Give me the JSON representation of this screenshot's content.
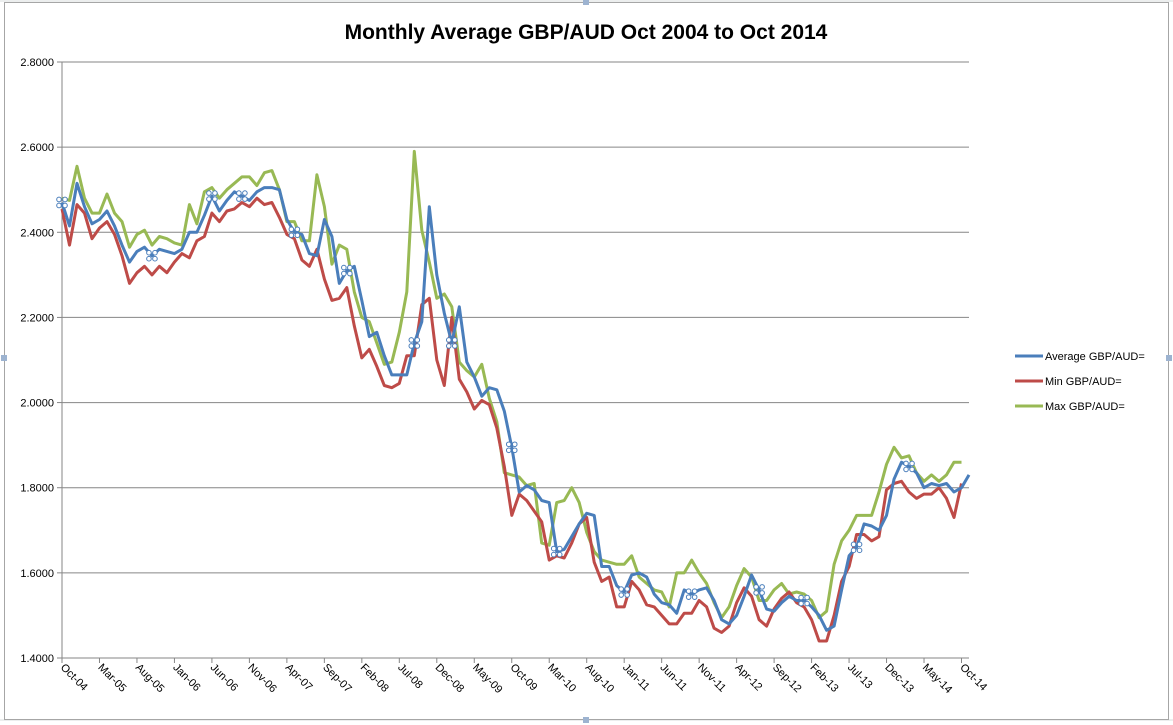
{
  "chart_data": {
    "type": "line",
    "title": "Monthly Average GBP/AUD Oct 2004 to Oct 2014",
    "xlabel": "",
    "ylabel": "",
    "ylim": [
      1.4,
      2.8
    ],
    "yticks": [
      "1.4000",
      "1.6000",
      "1.8000",
      "2.0000",
      "2.2000",
      "2.4000",
      "2.6000",
      "2.8000"
    ],
    "ytick_values": [
      1.4,
      1.6,
      1.8,
      2.0,
      2.2,
      2.4,
      2.6,
      2.8
    ],
    "xtick_labels": [
      "Oct-04",
      "Mar-05",
      "Aug-05",
      "Jan-06",
      "Jun-06",
      "Nov-06",
      "Apr-07",
      "Sep-07",
      "Feb-08",
      "Jul-08",
      "Dec-08",
      "May-09",
      "Oct-09",
      "Mar-10",
      "Aug-10",
      "Jan-11",
      "Jun-11",
      "Nov-11",
      "Apr-12",
      "Sep-12",
      "Feb-13",
      "Jul-13",
      "Dec-13",
      "May-14",
      "Oct-14"
    ],
    "xtick_every": 5,
    "grid": "horizontal",
    "legend_position": "right",
    "series": [
      {
        "name": "Average GBP/AUD=",
        "color": "#4a7ebb",
        "values": [
          2.47,
          2.415,
          2.515,
          2.46,
          2.42,
          2.43,
          2.45,
          2.415,
          2.37,
          2.33,
          2.355,
          2.365,
          2.345,
          2.36,
          2.355,
          2.35,
          2.36,
          2.4,
          2.4,
          2.44,
          2.485,
          2.45,
          2.475,
          2.495,
          2.485,
          2.475,
          2.495,
          2.505,
          2.505,
          2.5,
          2.43,
          2.4,
          2.395,
          2.35,
          2.345,
          2.43,
          2.39,
          2.28,
          2.31,
          2.32,
          2.24,
          2.155,
          2.165,
          2.11,
          2.065,
          2.065,
          2.065,
          2.14,
          2.19,
          2.46,
          2.3,
          2.21,
          2.14,
          2.225,
          2.095,
          2.06,
          2.015,
          2.035,
          2.03,
          1.98,
          1.895,
          1.79,
          1.805,
          1.795,
          1.77,
          1.765,
          1.65,
          1.655,
          1.685,
          1.715,
          1.74,
          1.735,
          1.615,
          1.615,
          1.57,
          1.555,
          1.595,
          1.6,
          1.59,
          1.55,
          1.53,
          1.525,
          1.505,
          1.56,
          1.55,
          1.56,
          1.565,
          1.535,
          1.49,
          1.48,
          1.5,
          1.545,
          1.595,
          1.56,
          1.515,
          1.51,
          1.53,
          1.545,
          1.535,
          1.535,
          1.52,
          1.5,
          1.465,
          1.475,
          1.56,
          1.64,
          1.66,
          1.715,
          1.71,
          1.7,
          1.735,
          1.82,
          1.86,
          1.85,
          1.835,
          1.8,
          1.81,
          1.805,
          1.81,
          1.79,
          1.8,
          1.83
        ]
      },
      {
        "name": "Min GBP/AUD=",
        "color": "#be4b48",
        "values": [
          2.455,
          2.37,
          2.465,
          2.445,
          2.385,
          2.41,
          2.425,
          2.395,
          2.345,
          2.28,
          2.305,
          2.32,
          2.3,
          2.32,
          2.305,
          2.33,
          2.35,
          2.34,
          2.38,
          2.39,
          2.445,
          2.425,
          2.45,
          2.455,
          2.47,
          2.46,
          2.48,
          2.465,
          2.47,
          2.435,
          2.395,
          2.385,
          2.335,
          2.32,
          2.36,
          2.29,
          2.24,
          2.245,
          2.27,
          2.18,
          2.105,
          2.125,
          2.085,
          2.04,
          2.035,
          2.045,
          2.11,
          2.11,
          2.23,
          2.245,
          2.1,
          2.04,
          2.2,
          2.055,
          2.025,
          1.985,
          2.005,
          1.995,
          1.94,
          1.85,
          1.735,
          1.785,
          1.77,
          1.745,
          1.72,
          1.63,
          1.64,
          1.635,
          1.67,
          1.715,
          1.73,
          1.625,
          1.58,
          1.59,
          1.52,
          1.52,
          1.58,
          1.56,
          1.525,
          1.52,
          1.5,
          1.48,
          1.48,
          1.505,
          1.505,
          1.535,
          1.52,
          1.47,
          1.46,
          1.475,
          1.53,
          1.565,
          1.545,
          1.49,
          1.475,
          1.515,
          1.54,
          1.555,
          1.53,
          1.52,
          1.49,
          1.44,
          1.44,
          1.5,
          1.58,
          1.615,
          1.69,
          1.69,
          1.675,
          1.685,
          1.795,
          1.81,
          1.815,
          1.79,
          1.775,
          1.785,
          1.785,
          1.8,
          1.775,
          1.73,
          1.81
        ]
      },
      {
        "name": "Max GBP/AUD=",
        "color": "#98b954",
        "values": [
          2.48,
          2.475,
          2.555,
          2.48,
          2.445,
          2.445,
          2.49,
          2.445,
          2.425,
          2.365,
          2.395,
          2.405,
          2.37,
          2.39,
          2.385,
          2.375,
          2.37,
          2.465,
          2.42,
          2.495,
          2.505,
          2.48,
          2.5,
          2.515,
          2.53,
          2.53,
          2.51,
          2.54,
          2.545,
          2.5,
          2.425,
          2.425,
          2.38,
          2.38,
          2.535,
          2.46,
          2.325,
          2.37,
          2.36,
          2.26,
          2.2,
          2.19,
          2.14,
          2.09,
          2.095,
          2.165,
          2.26,
          2.59,
          2.405,
          2.33,
          2.245,
          2.255,
          2.225,
          2.095,
          2.075,
          2.06,
          2.09,
          2.01,
          1.955,
          1.835,
          1.83,
          1.825,
          1.805,
          1.81,
          1.67,
          1.665,
          1.765,
          1.77,
          1.8,
          1.765,
          1.695,
          1.65,
          1.63,
          1.625,
          1.62,
          1.62,
          1.64,
          1.59,
          1.575,
          1.56,
          1.555,
          1.52,
          1.6,
          1.6,
          1.63,
          1.6,
          1.575,
          1.53,
          1.495,
          1.52,
          1.57,
          1.61,
          1.59,
          1.535,
          1.535,
          1.56,
          1.575,
          1.55,
          1.555,
          1.55,
          1.535,
          1.495,
          1.51,
          1.62,
          1.675,
          1.7,
          1.735,
          1.735,
          1.735,
          1.79,
          1.855,
          1.895,
          1.87,
          1.875,
          1.835,
          1.815,
          1.83,
          1.815,
          1.83,
          1.86,
          1.86
        ]
      }
    ],
    "markers": {
      "series": "Average GBP/AUD=",
      "indices": [
        0,
        12,
        20,
        24,
        31,
        38,
        47,
        52,
        60,
        66,
        75,
        84,
        93,
        99,
        106,
        113
      ]
    }
  }
}
